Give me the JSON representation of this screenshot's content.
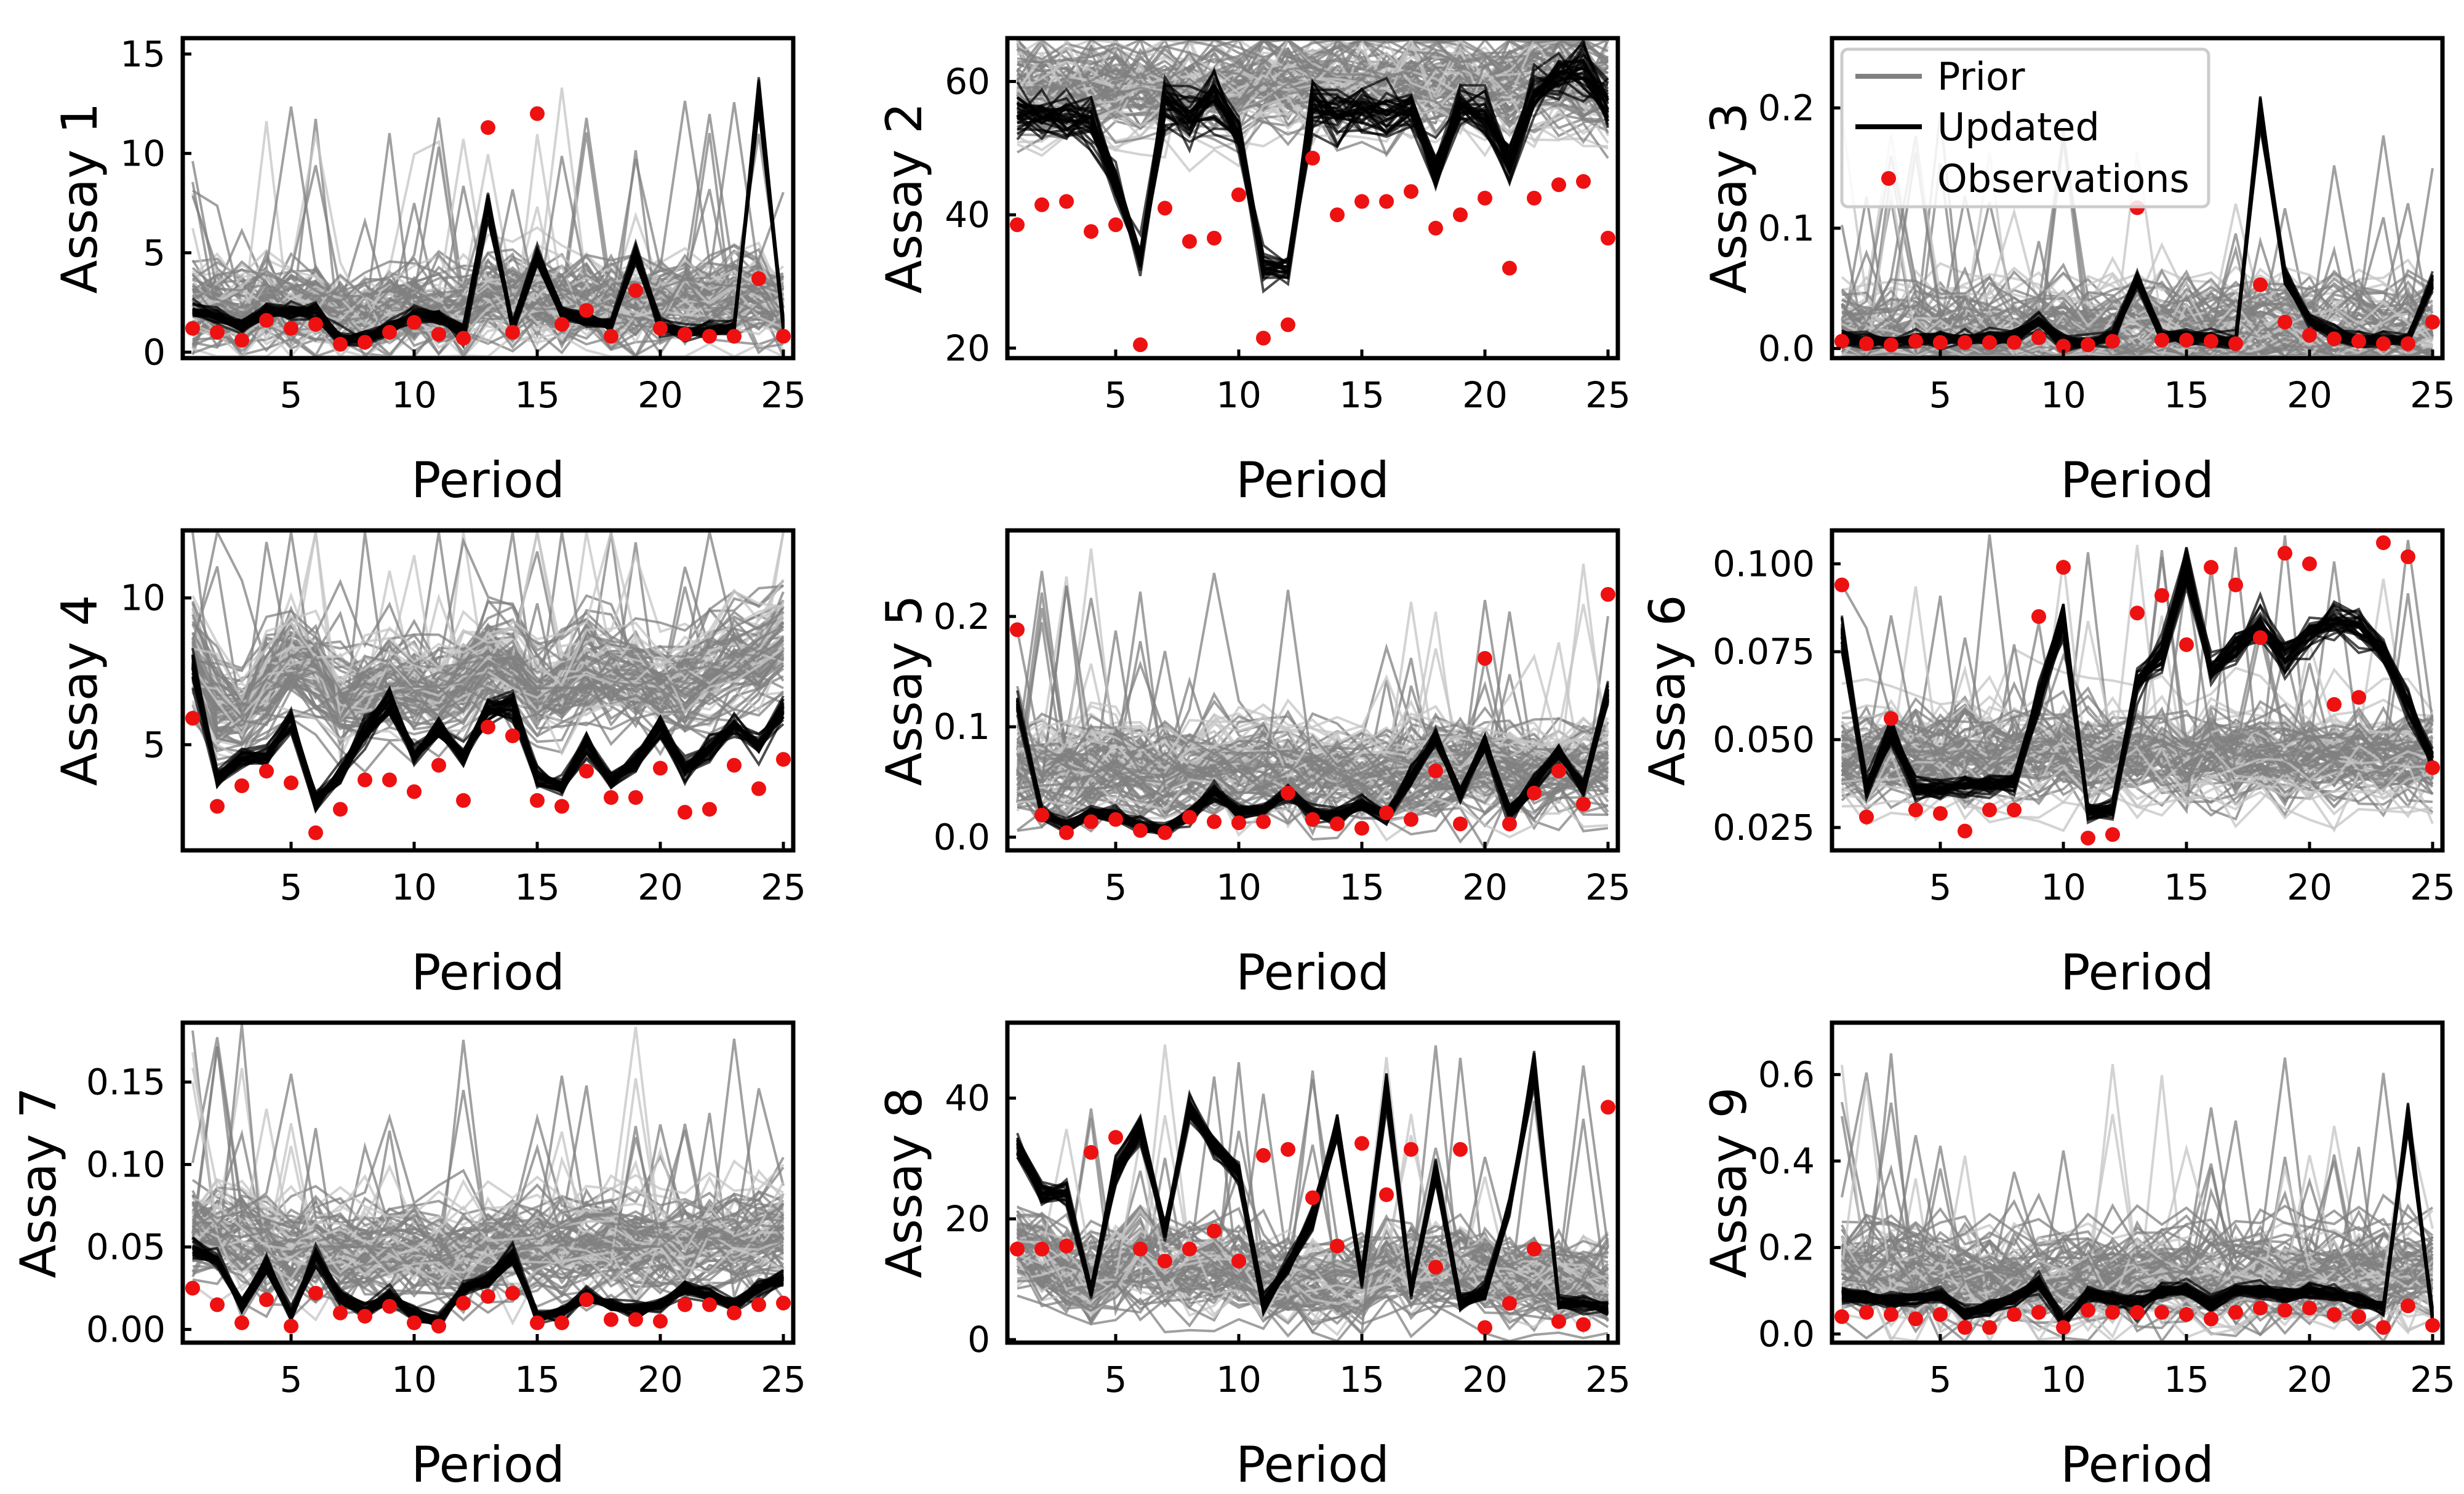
{
  "legend": {
    "prior": "Prior",
    "updated": "Updated",
    "observations": "Observations"
  },
  "colors": {
    "prior": "#808080",
    "prior_light": "#c4c4c4",
    "updated": "#000000",
    "observations": "#ee1111"
  },
  "chart_data": [
    {
      "type": "line",
      "title": "",
      "xlabel": "Period",
      "ylabel": "Assay 1",
      "xlim": [
        0.6,
        25.4
      ],
      "ylim": [
        -0.3,
        15.8
      ],
      "xticks": [
        5,
        10,
        15,
        20,
        25
      ],
      "yticks": [
        0,
        5,
        10,
        15
      ],
      "ytick_labels": [
        "0",
        "5",
        "10",
        "15"
      ],
      "prior_center": [
        2.2,
        2.1,
        2.0,
        2.3,
        2.1,
        2.2,
        1.5,
        1.6,
        2.0,
        2.2,
        2.0,
        2.0,
        2.8,
        2.6,
        2.7,
        2.4,
        2.5,
        2.3,
        2.4,
        2.5,
        2.6,
        2.5,
        2.6,
        2.7,
        2.3
      ],
      "updated_mean": [
        2.1,
        1.8,
        1.3,
        2.1,
        2.0,
        2.0,
        0.6,
        0.7,
        1.2,
        1.9,
        1.8,
        1.0,
        7.4,
        1.3,
        4.8,
        2.0,
        1.7,
        1.4,
        5.0,
        1.3,
        1.0,
        1.1,
        1.2,
        13.0,
        1.3
      ],
      "observations": [
        1.2,
        1.0,
        0.6,
        1.6,
        1.2,
        1.4,
        0.4,
        0.5,
        1.0,
        1.5,
        0.9,
        0.7,
        11.3,
        1.0,
        12.0,
        1.4,
        2.1,
        0.8,
        3.1,
        1.2,
        0.9,
        0.8,
        0.8,
        3.7,
        0.8
      ]
    },
    {
      "type": "line",
      "title": "",
      "xlabel": "Period",
      "ylabel": "Assay 2",
      "xlim": [
        0.6,
        25.4
      ],
      "ylim": [
        18.5,
        66.5
      ],
      "xticks": [
        5,
        10,
        15,
        20,
        25
      ],
      "yticks": [
        20,
        40,
        60
      ],
      "ytick_labels": [
        "20",
        "40",
        "60"
      ],
      "prior_center": [
        59,
        59,
        59,
        59,
        59,
        59,
        59,
        59,
        59,
        59,
        60,
        60,
        60,
        60,
        60,
        60,
        60,
        60,
        60,
        60,
        60,
        61,
        61,
        60,
        59
      ],
      "updated_mean": [
        55,
        55,
        55,
        54,
        45,
        33,
        57,
        54,
        57,
        52,
        32,
        32,
        57,
        55,
        56,
        55,
        56,
        47,
        56,
        55,
        48,
        58,
        61,
        62,
        57
      ],
      "observations": [
        38.5,
        41.5,
        42,
        37.5,
        38.5,
        20.5,
        41,
        36,
        36.5,
        43,
        21.5,
        23.5,
        48.5,
        40,
        42,
        42,
        43.5,
        38,
        40,
        42.5,
        32,
        42.5,
        44.5,
        45,
        36.5
      ]
    },
    {
      "type": "line",
      "title": "",
      "xlabel": "Period",
      "ylabel": "Assay 3",
      "xlim": [
        0.6,
        25.4
      ],
      "ylim": [
        -0.008,
        0.258
      ],
      "xticks": [
        5,
        10,
        15,
        20,
        25
      ],
      "yticks": [
        0.0,
        0.1,
        0.2
      ],
      "ytick_labels": [
        "0.0",
        "0.1",
        "0.2"
      ],
      "prior_center": [
        0.012,
        0.011,
        0.012,
        0.013,
        0.012,
        0.012,
        0.012,
        0.012,
        0.014,
        0.012,
        0.013,
        0.013,
        0.015,
        0.014,
        0.014,
        0.013,
        0.013,
        0.014,
        0.013,
        0.013,
        0.012,
        0.012,
        0.012,
        0.012,
        0.013
      ],
      "updated_mean": [
        0.008,
        0.006,
        0.006,
        0.008,
        0.008,
        0.008,
        0.008,
        0.01,
        0.022,
        0.004,
        0.004,
        0.01,
        0.058,
        0.01,
        0.01,
        0.008,
        0.006,
        0.2,
        0.06,
        0.022,
        0.012,
        0.008,
        0.006,
        0.008,
        0.055
      ],
      "observations": [
        0.006,
        0.004,
        0.003,
        0.006,
        0.005,
        0.005,
        0.005,
        0.005,
        0.009,
        0.002,
        0.003,
        0.006,
        0.117,
        0.007,
        0.007,
        0.006,
        0.004,
        0.053,
        0.022,
        0.011,
        0.008,
        0.006,
        0.004,
        0.004,
        0.022
      ]
    },
    {
      "type": "line",
      "title": "",
      "xlabel": "Period",
      "ylabel": "Assay 4",
      "xlim": [
        0.6,
        25.4
      ],
      "ylim": [
        1.4,
        12.3
      ],
      "xticks": [
        5,
        10,
        15,
        20,
        25
      ],
      "yticks": [
        5,
        10
      ],
      "ytick_labels": [
        "5",
        "10"
      ],
      "prior_center": [
        8.0,
        6.6,
        6.2,
        7.2,
        8.0,
        7.6,
        6.6,
        6.9,
        7.2,
        7.0,
        6.8,
        7.3,
        8.0,
        7.8,
        7.0,
        7.2,
        7.6,
        7.6,
        7.4,
        7.2,
        7.3,
        7.6,
        8.0,
        8.2,
        8.8
      ],
      "updated_mean": [
        7.7,
        3.8,
        4.5,
        4.6,
        5.8,
        3.1,
        4.0,
        5.4,
        6.5,
        4.6,
        5.5,
        4.6,
        6.1,
        6.4,
        3.9,
        3.6,
        5.0,
        3.8,
        4.4,
        5.6,
        4.2,
        4.8,
        5.6,
        4.9,
        6.2
      ],
      "observations": [
        5.9,
        2.9,
        3.6,
        4.1,
        3.7,
        2.0,
        2.8,
        3.8,
        3.8,
        3.4,
        4.3,
        3.1,
        5.6,
        5.3,
        3.1,
        2.9,
        4.1,
        3.2,
        3.2,
        4.2,
        2.7,
        2.8,
        4.3,
        3.5,
        4.5
      ]
    },
    {
      "type": "line",
      "title": "",
      "xlabel": "Period",
      "ylabel": "Assay 5",
      "xlim": [
        0.6,
        25.4
      ],
      "ylim": [
        -0.012,
        0.278
      ],
      "xticks": [
        5,
        10,
        15,
        20,
        25
      ],
      "yticks": [
        0.0,
        0.1,
        0.2
      ],
      "ytick_labels": [
        "0.0",
        "0.1",
        "0.2"
      ],
      "prior_center": [
        0.062,
        0.06,
        0.058,
        0.062,
        0.062,
        0.058,
        0.058,
        0.06,
        0.062,
        0.062,
        0.064,
        0.062,
        0.06,
        0.058,
        0.056,
        0.055,
        0.055,
        0.058,
        0.06,
        0.062,
        0.06,
        0.058,
        0.058,
        0.062,
        0.064
      ],
      "updated_mean": [
        0.12,
        0.022,
        0.01,
        0.022,
        0.02,
        0.01,
        0.008,
        0.02,
        0.042,
        0.022,
        0.024,
        0.04,
        0.02,
        0.02,
        0.03,
        0.02,
        0.055,
        0.09,
        0.04,
        0.085,
        0.02,
        0.05,
        0.075,
        0.045,
        0.13
      ],
      "observations": [
        0.188,
        0.02,
        0.004,
        0.014,
        0.016,
        0.006,
        0.004,
        0.018,
        0.014,
        0.013,
        0.014,
        0.04,
        0.016,
        0.012,
        0.008,
        0.022,
        0.016,
        0.06,
        0.012,
        0.162,
        0.012,
        0.04,
        0.06,
        0.03,
        0.22
      ]
    },
    {
      "type": "line",
      "title": "",
      "xlabel": "Period",
      "ylabel": "Assay 6",
      "xlim": [
        0.6,
        25.4
      ],
      "ylim": [
        0.0185,
        0.1095
      ],
      "xticks": [
        5,
        10,
        15,
        20,
        25
      ],
      "yticks": [
        0.025,
        0.05,
        0.075,
        0.1
      ],
      "ytick_labels": [
        "0.025",
        "0.050",
        "0.075",
        "0.100"
      ],
      "prior_center": [
        0.046,
        0.045,
        0.046,
        0.045,
        0.045,
        0.046,
        0.045,
        0.046,
        0.046,
        0.047,
        0.045,
        0.046,
        0.046,
        0.047,
        0.045,
        0.046,
        0.045,
        0.046,
        0.045,
        0.046,
        0.045,
        0.046,
        0.045,
        0.046,
        0.046
      ],
      "updated_mean": [
        0.08,
        0.036,
        0.052,
        0.036,
        0.036,
        0.037,
        0.037,
        0.038,
        0.062,
        0.085,
        0.029,
        0.03,
        0.066,
        0.074,
        0.1,
        0.07,
        0.077,
        0.084,
        0.073,
        0.08,
        0.084,
        0.082,
        0.075,
        0.06,
        0.044
      ],
      "observations": [
        0.094,
        0.028,
        0.056,
        0.03,
        0.029,
        0.024,
        0.03,
        0.03,
        0.085,
        0.099,
        0.022,
        0.023,
        0.086,
        0.091,
        0.077,
        0.099,
        0.094,
        0.079,
        0.103,
        0.1,
        0.06,
        0.062,
        0.106,
        0.102,
        0.042
      ]
    },
    {
      "type": "line",
      "title": "",
      "xlabel": "Period",
      "ylabel": "Assay 7",
      "xlim": [
        0.6,
        25.4
      ],
      "ylim": [
        -0.008,
        0.186
      ],
      "xticks": [
        5,
        10,
        15,
        20,
        25
      ],
      "yticks": [
        0.0,
        0.05,
        0.1,
        0.15
      ],
      "ytick_labels": [
        "0.00",
        "0.05",
        "0.10",
        "0.15"
      ],
      "prior_center": [
        0.06,
        0.058,
        0.055,
        0.05,
        0.045,
        0.048,
        0.045,
        0.044,
        0.046,
        0.046,
        0.045,
        0.046,
        0.046,
        0.05,
        0.05,
        0.048,
        0.05,
        0.052,
        0.05,
        0.05,
        0.05,
        0.052,
        0.052,
        0.055,
        0.06
      ],
      "updated_mean": [
        0.05,
        0.042,
        0.015,
        0.04,
        0.008,
        0.045,
        0.02,
        0.012,
        0.02,
        0.008,
        0.005,
        0.025,
        0.03,
        0.045,
        0.008,
        0.01,
        0.02,
        0.015,
        0.012,
        0.015,
        0.025,
        0.02,
        0.015,
        0.025,
        0.03
      ],
      "observations": [
        0.025,
        0.015,
        0.004,
        0.018,
        0.002,
        0.022,
        0.01,
        0.008,
        0.014,
        0.004,
        0.002,
        0.016,
        0.02,
        0.022,
        0.004,
        0.004,
        0.018,
        0.006,
        0.006,
        0.005,
        0.015,
        0.015,
        0.01,
        0.015,
        0.016
      ]
    },
    {
      "type": "line",
      "title": "",
      "xlabel": "Period",
      "ylabel": "Assay 8",
      "xlim": [
        0.6,
        25.4
      ],
      "ylim": [
        -0.5,
        52.5
      ],
      "xticks": [
        5,
        10,
        15,
        20,
        25
      ],
      "yticks": [
        0,
        20,
        40
      ],
      "ytick_labels": [
        "0",
        "20",
        "40"
      ],
      "prior_center": [
        16,
        14,
        12,
        10,
        12,
        14,
        12,
        12,
        12,
        12,
        10,
        10,
        10,
        10,
        10,
        12,
        12,
        12,
        12,
        12,
        10,
        10,
        10,
        10,
        10
      ],
      "updated_mean": [
        32,
        24,
        24,
        8,
        28,
        35,
        18,
        38,
        32,
        28,
        6,
        12,
        20,
        35,
        10,
        42,
        8,
        28,
        6,
        8,
        22,
        45,
        6,
        6,
        5
      ],
      "observations": [
        15,
        15,
        15.5,
        31,
        33.5,
        15,
        13,
        15,
        18,
        13,
        30.5,
        31.5,
        23.5,
        15.5,
        32.5,
        24,
        31.5,
        12,
        31.5,
        2,
        6,
        15,
        3,
        2.5,
        38.5
      ]
    },
    {
      "type": "line",
      "title": "",
      "xlabel": "Period",
      "ylabel": "Assay 9",
      "xlim": [
        0.6,
        25.4
      ],
      "ylim": [
        -0.02,
        0.72
      ],
      "xticks": [
        5,
        10,
        15,
        20,
        25
      ],
      "yticks": [
        0.0,
        0.2,
        0.4,
        0.6
      ],
      "ytick_labels": [
        "0.0",
        "0.2",
        "0.4",
        "0.6"
      ],
      "prior_center": [
        0.16,
        0.15,
        0.14,
        0.14,
        0.13,
        0.13,
        0.12,
        0.12,
        0.12,
        0.12,
        0.13,
        0.13,
        0.13,
        0.14,
        0.13,
        0.12,
        0.12,
        0.13,
        0.13,
        0.13,
        0.13,
        0.13,
        0.13,
        0.14,
        0.14
      ],
      "updated_mean": [
        0.09,
        0.085,
        0.08,
        0.08,
        0.09,
        0.05,
        0.06,
        0.08,
        0.12,
        0.03,
        0.09,
        0.08,
        0.07,
        0.1,
        0.1,
        0.07,
        0.1,
        0.1,
        0.09,
        0.1,
        0.09,
        0.08,
        0.06,
        0.5,
        0.04
      ],
      "observations": [
        0.04,
        0.05,
        0.045,
        0.035,
        0.045,
        0.015,
        0.015,
        0.045,
        0.05,
        0.015,
        0.055,
        0.05,
        0.05,
        0.05,
        0.045,
        0.035,
        0.05,
        0.06,
        0.055,
        0.06,
        0.045,
        0.04,
        0.015,
        0.065,
        0.02
      ]
    }
  ]
}
